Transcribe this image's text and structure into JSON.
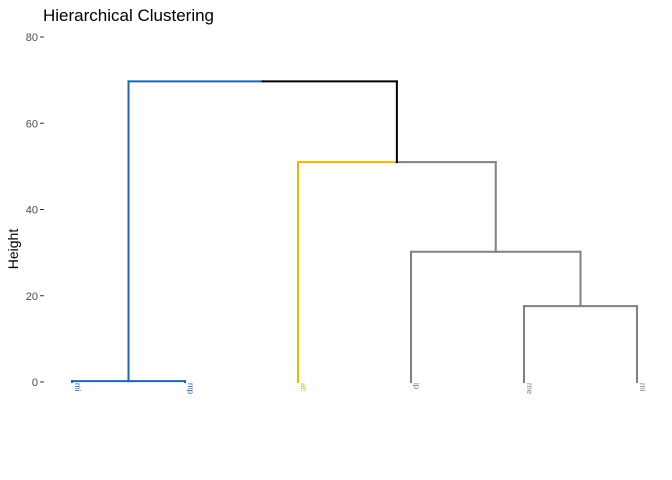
{
  "chart_data": {
    "type": "dendrogram",
    "title": "Hierarchical Clustering",
    "ylabel": "Height",
    "ylim": [
      0,
      80
    ],
    "yticks": [
      0,
      20,
      40,
      60,
      80
    ],
    "ytick_labels": [
      "0",
      "20",
      "40",
      "60",
      "80"
    ],
    "colors": {
      "blue": "#1f64b4",
      "yellow": "#e6b800",
      "gray": "#808080",
      "black": "#000000"
    },
    "leaves": [
      {
        "label": "mi",
        "color": "blue"
      },
      {
        "label": "mp",
        "color": "blue"
      },
      {
        "label": "ac",
        "color": "yellow"
      },
      {
        "label": "ip",
        "color": "gray"
      },
      {
        "label": "me",
        "color": "gray"
      },
      {
        "label": "mi",
        "color": "gray"
      }
    ],
    "merges": [
      {
        "left": "leaf:0",
        "right": "leaf:1",
        "height": 0.2,
        "color": "blue"
      },
      {
        "left": "leaf:4",
        "right": "leaf:5",
        "height": 17.6,
        "color": "gray"
      },
      {
        "left": "leaf:3",
        "right": "node:1",
        "height": 30.2,
        "color": "gray"
      },
      {
        "left": "leaf:2",
        "right": "node:2",
        "height": 51.0,
        "color_left": "yellow",
        "color_right": "gray"
      },
      {
        "left": "node:0",
        "right": "node:3",
        "height": 69.7,
        "color_left": "blue",
        "color_right": "black"
      }
    ]
  }
}
